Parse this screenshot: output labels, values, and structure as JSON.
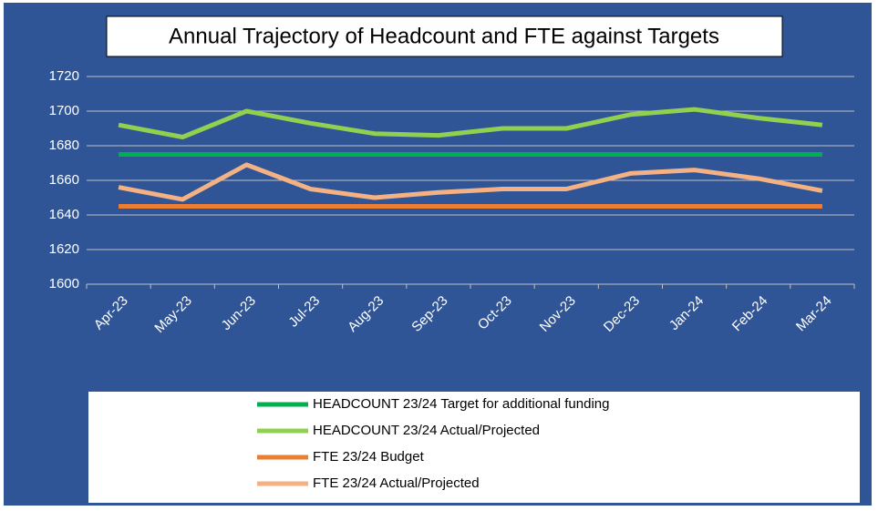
{
  "chart_data": {
    "type": "line",
    "title": "Annual Trajectory of Headcount and FTE against Targets",
    "categories": [
      "Apr-23",
      "May-23",
      "Jun-23",
      "Jul-23",
      "Aug-23",
      "Sep-23",
      "Oct-23",
      "Nov-23",
      "Dec-23",
      "Jan-24",
      "Feb-24",
      "Mar-24"
    ],
    "series": [
      {
        "name": "HEADCOUNT 23/24 Target for additional funding",
        "color": "#00b050",
        "values": [
          1675,
          1675,
          1675,
          1675,
          1675,
          1675,
          1675,
          1675,
          1675,
          1675,
          1675,
          1675
        ]
      },
      {
        "name": "HEADCOUNT 23/24 Actual/Projected",
        "color": "#92d050",
        "values": [
          1692,
          1685,
          1700,
          1693,
          1687,
          1686,
          1690,
          1690,
          1698,
          1701,
          1696,
          1692
        ]
      },
      {
        "name": "FTE 23/24 Budget",
        "color": "#ed7d31",
        "values": [
          1645,
          1645,
          1645,
          1645,
          1645,
          1645,
          1645,
          1645,
          1645,
          1645,
          1645,
          1645
        ]
      },
      {
        "name": "FTE 23/24 Actual/Projected",
        "color": "#f4b183",
        "values": [
          1656,
          1649,
          1669,
          1655,
          1650,
          1653,
          1655,
          1655,
          1664,
          1666,
          1661,
          1654
        ]
      }
    ],
    "ylim": [
      1600,
      1720
    ],
    "yticks": [
      1600,
      1620,
      1640,
      1660,
      1680,
      1700,
      1720
    ],
    "grid": true
  }
}
